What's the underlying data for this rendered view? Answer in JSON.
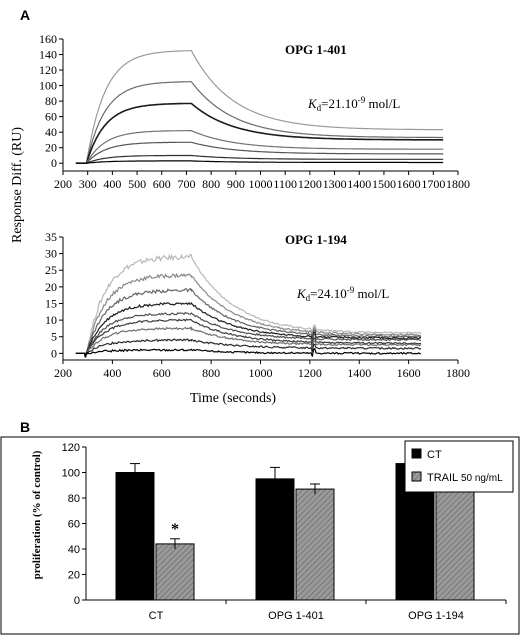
{
  "figure": {
    "panel_a_label": "A",
    "panel_b_label": "B"
  },
  "chart_data": [
    {
      "id": "opg-1-401",
      "type": "line",
      "title": "OPG 1-401",
      "annotation": {
        "k": "K",
        "sub": "d",
        "value": "=21.10",
        "exp": "-9",
        "unit": " mol/L"
      },
      "ylabel": "Response Diff. (RU)",
      "xlabel": "",
      "xlim": [
        200,
        1800
      ],
      "ylim": [
        -10,
        160
      ],
      "xticks": [
        200,
        300,
        400,
        500,
        600,
        700,
        800,
        900,
        1000,
        1100,
        1200,
        1300,
        1400,
        1500,
        1600,
        1700,
        1800
      ],
      "yticks": [
        0,
        20,
        40,
        60,
        80,
        100,
        120,
        140,
        160
      ],
      "grid": false,
      "legend": "none",
      "x_start": 295,
      "x_inject_end": 720,
      "x_end": 1740,
      "series": [
        {
          "peak": 145,
          "end": 43,
          "color": "#9a9a9a"
        },
        {
          "peak": 105,
          "end": 33,
          "color": "#6a6a6a"
        },
        {
          "peak": 77,
          "end": 30,
          "color": "#1a1a1a"
        },
        {
          "peak": 42,
          "end": 18,
          "color": "#707070"
        },
        {
          "peak": 27,
          "end": 12,
          "color": "#555555"
        },
        {
          "peak": 10,
          "end": 5,
          "color": "#303030"
        },
        {
          "peak": 3,
          "end": 1,
          "color": "#000000"
        }
      ]
    },
    {
      "id": "opg-1-194",
      "type": "line",
      "title": "OPG 1-194",
      "annotation": {
        "k": "K",
        "sub": "d",
        "value": "=24.10",
        "exp": "-9",
        "unit": " mol/L"
      },
      "ylabel": "",
      "xlabel": "Time (seconds)",
      "xlim": [
        200,
        1800
      ],
      "ylim": [
        -2,
        35
      ],
      "xticks": [
        200,
        400,
        600,
        800,
        1000,
        1200,
        1400,
        1600,
        1800
      ],
      "yticks": [
        0,
        5,
        10,
        15,
        20,
        25,
        30,
        35
      ],
      "grid": false,
      "legend": "none",
      "x_start": 295,
      "x_inject_end": 720,
      "x_end": 1650,
      "series": [
        {
          "peak": 29,
          "end": 6,
          "color": "#b8b8b8"
        },
        {
          "peak": 23.5,
          "end": 5.5,
          "color": "#8a8a8a"
        },
        {
          "peak": 19,
          "end": 5,
          "color": "#666666"
        },
        {
          "peak": 15,
          "end": 4.5,
          "color": "#1e1e1e"
        },
        {
          "peak": 12,
          "end": 4,
          "color": "#505050"
        },
        {
          "peak": 10,
          "end": 3,
          "color": "#3c3c3c"
        },
        {
          "peak": 7.5,
          "end": 2.5,
          "color": "#707070"
        },
        {
          "peak": 4,
          "end": 1.5,
          "color": "#2a2a2a"
        },
        {
          "peak": 1,
          "end": 0,
          "color": "#000000"
        }
      ]
    },
    {
      "id": "proliferation",
      "type": "bar",
      "title": "",
      "categories": [
        "CT",
        "OPG 1-401",
        "OPG 1-194"
      ],
      "ylabel": "proliferation (% of control)",
      "xlabel": "",
      "ylim": [
        0,
        120
      ],
      "yticks": [
        0,
        20,
        40,
        60,
        80,
        100,
        120
      ],
      "grid": false,
      "legend": "top-right",
      "legend_items": [
        {
          "label": "CT",
          "extra": ""
        },
        {
          "label": "TRAIL",
          "extra": " 50 ng/mL"
        }
      ],
      "significance": {
        "label": "*",
        "category": 0,
        "series": 1
      },
      "series": [
        {
          "name": "CT",
          "values": [
            100,
            95,
            107
          ],
          "errors": [
            7,
            9,
            3
          ],
          "color": "#000000",
          "pattern": "solid"
        },
        {
          "name": "TRAIL 50 ng/mL",
          "values": [
            44,
            87,
            95
          ],
          "errors": [
            4,
            4,
            4
          ],
          "color": "#8c8c8c",
          "pattern": "hatched"
        }
      ]
    }
  ]
}
